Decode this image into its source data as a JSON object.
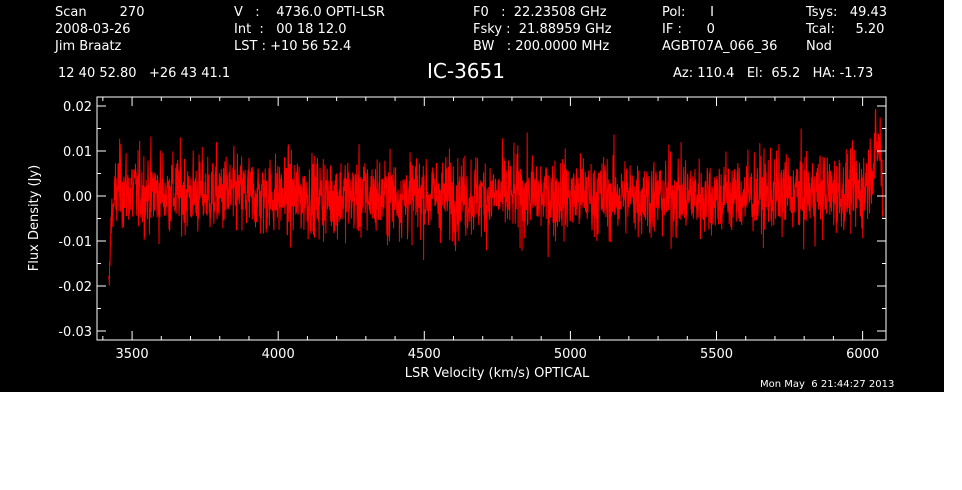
{
  "header": {
    "col1": [
      "Scan        270",
      "2008-03-26",
      "Jim Braatz"
    ],
    "col2": [
      "V   :    4736.0 OPTI-LSR",
      "Int  :   00 18 12.0",
      "LST : +10 56 52.4"
    ],
    "col3": [
      "F0   :  22.23508 GHz",
      "Fsky :  21.88959 GHz",
      "BW   : 200.0000 MHz"
    ],
    "col4": [
      "Pol:      I",
      "IF :      0",
      "AGBT07A_066_36"
    ],
    "col5": [
      "Tsys:   49.43",
      "Tcal:     5.20",
      "Nod"
    ],
    "coords": "12 40 52.80   +26 43 41.1",
    "source": "IC-3651",
    "azel": "Az: 110.4   El:  65.2   HA: -1.73",
    "timestamp": "Mon May  6 21:44:27 2013"
  },
  "colors": {
    "background": "#000000",
    "axes": "#ffffff",
    "spectrum": "#ff0000"
  },
  "chart_data": {
    "type": "line",
    "xlabel": "LSR Velocity (km/s) OPTICAL",
    "ylabel": "Flux Density (Jy)",
    "xlim": [
      3380,
      6080
    ],
    "ylim": [
      -0.032,
      0.022
    ],
    "xticks": [
      3500,
      4000,
      4500,
      5000,
      5500,
      6000
    ],
    "xtick_labels": [
      "3500",
      "4000",
      "4500",
      "5000",
      "5500",
      "6000"
    ],
    "yticks": [
      -0.03,
      -0.02,
      -0.01,
      0.0,
      0.01,
      0.02
    ],
    "ytick_labels": [
      "-0.03",
      "-0.02",
      "-0.01",
      "0.00",
      "0.01",
      "0.02"
    ],
    "grid": false,
    "series": [
      {
        "color": "#ff0000",
        "x_start": 3420,
        "x_end": 6070,
        "noise_rms_jy": 0.0045,
        "envelope": [
          [
            3420,
            -0.021
          ],
          [
            3430,
            -0.005
          ],
          [
            3450,
            0.002
          ],
          [
            3500,
            0.001
          ],
          [
            4000,
            0.0
          ],
          [
            4500,
            0.0
          ],
          [
            5000,
            0.0
          ],
          [
            5500,
            0.0
          ],
          [
            6000,
            0.001
          ],
          [
            6060,
            0.012
          ],
          [
            6070,
            -0.003
          ]
        ]
      }
    ]
  }
}
